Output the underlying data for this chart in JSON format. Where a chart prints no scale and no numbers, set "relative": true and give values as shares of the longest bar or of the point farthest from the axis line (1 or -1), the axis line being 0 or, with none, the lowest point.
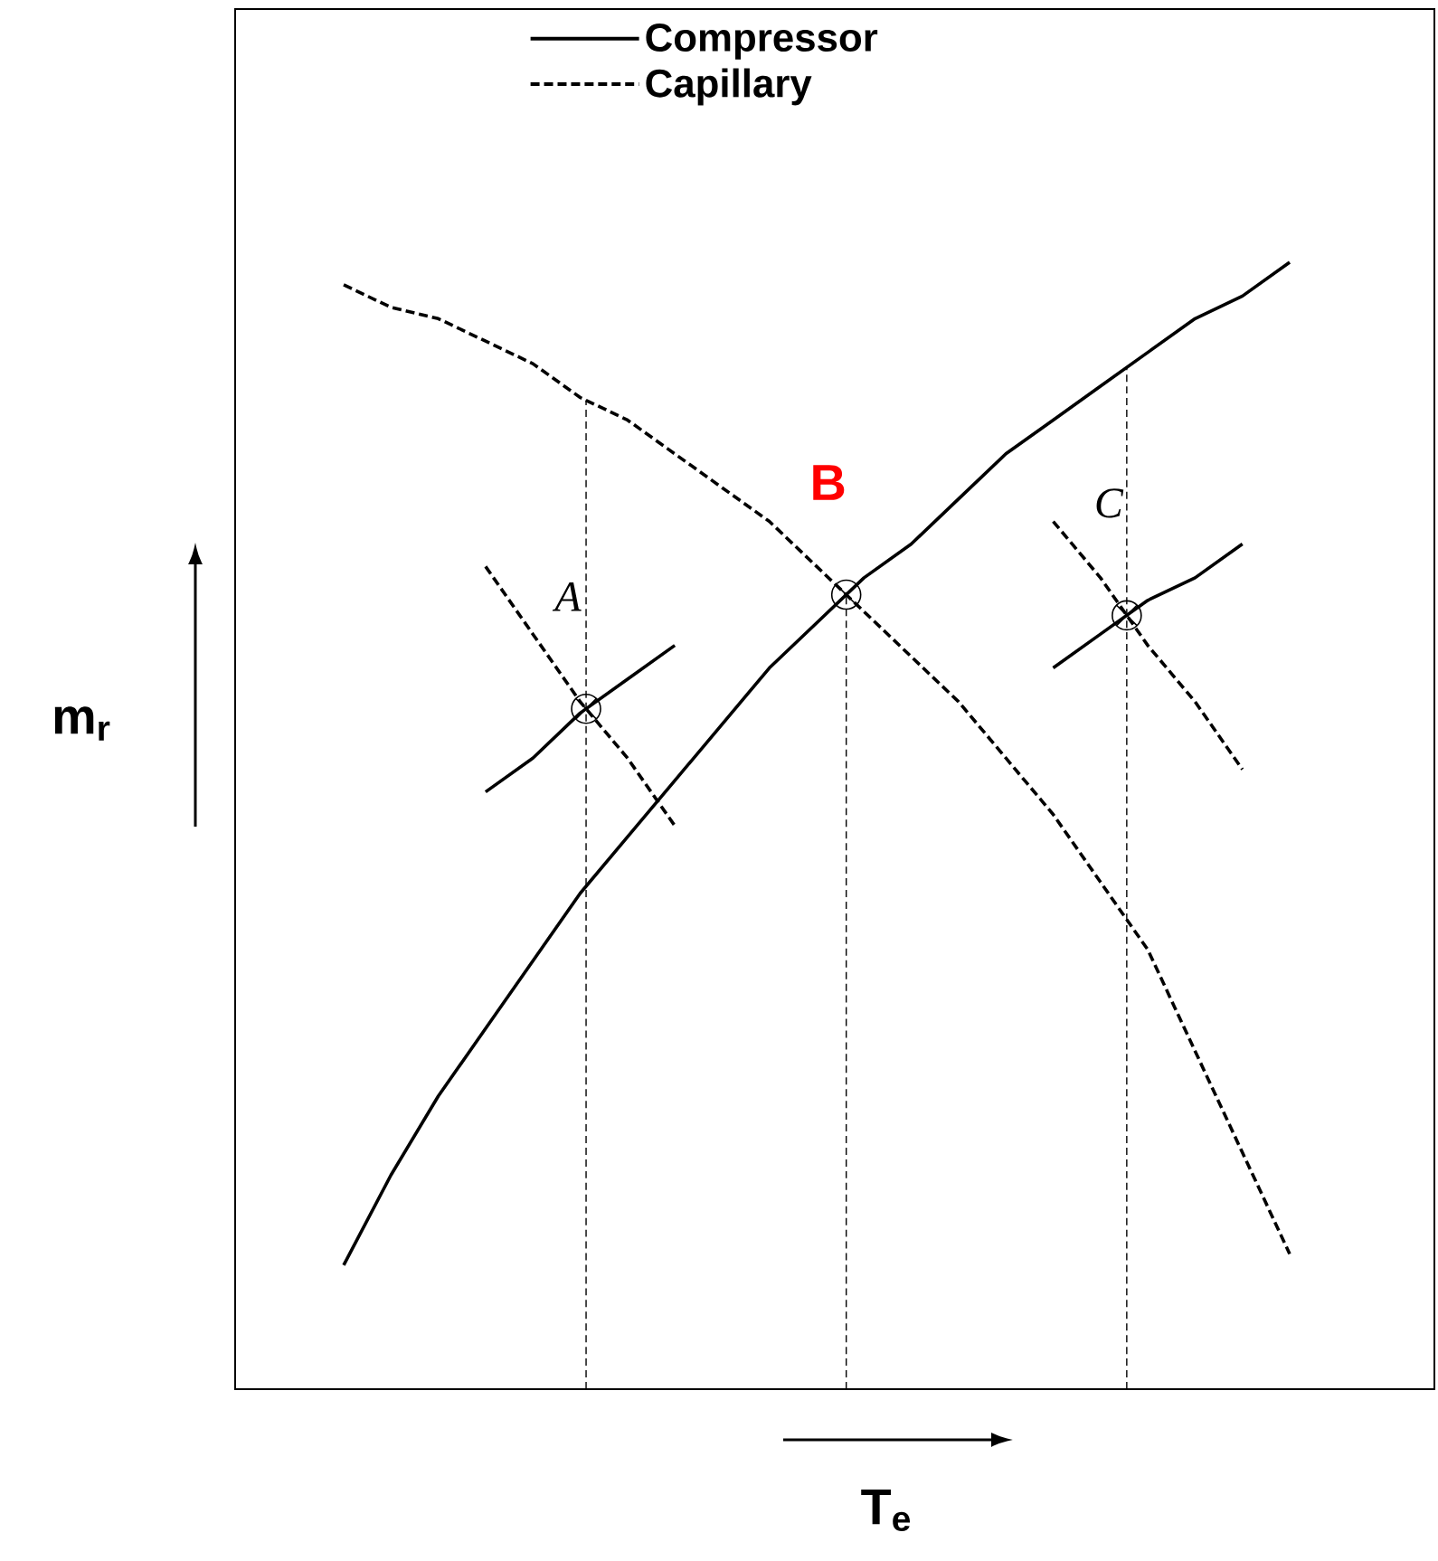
{
  "chart_data": {
    "type": "line",
    "relative": true,
    "xlabel": "T$_{e}$",
    "ylabel": "m$_{r}$",
    "legend": "top left",
    "categories": [
      null,
      null,
      null,
      null,
      null,
      null,
      null,
      null,
      null,
      null,
      null,
      null,
      null,
      null,
      null,
      null,
      null,
      null,
      null,
      null,
      null
    ],
    "series": [
      {
        "name": "Compressor",
        "color": "#000000",
        "line_style": "solid",
        "values": [
          0.11,
          0.19,
          0.26,
          0.32,
          0.38,
          0.44,
          0.49,
          0.54,
          0.59,
          0.64,
          0.68,
          0.72,
          0.75,
          0.79,
          0.83,
          0.86,
          0.89,
          0.92,
          0.95,
          0.97,
          1.0
        ]
      },
      {
        "name": "Capillary",
        "color": "#000000",
        "line_style": "dashed",
        "values": [
          0.98,
          0.96,
          0.95,
          0.93,
          0.91,
          0.88,
          0.86,
          0.83,
          0.8,
          0.77,
          0.73,
          0.69,
          0.65,
          0.61,
          0.56,
          0.51,
          0.45,
          0.39,
          0.3,
          0.21,
          0.12
        ]
      },
      {
        "color": "#000000",
        "line_style": "solid",
        "values": [
          null,
          null,
          null,
          0.53,
          0.56,
          0.6,
          0.63,
          0.66,
          null,
          null,
          null,
          null,
          null,
          null,
          null,
          null,
          null,
          null,
          null,
          null,
          null
        ]
      },
      {
        "color": "#000000",
        "line_style": "dashed",
        "values": [
          null,
          null,
          null,
          0.73,
          0.67,
          0.61,
          0.56,
          0.5,
          null,
          null,
          null,
          null,
          null,
          null,
          null,
          null,
          null,
          null,
          null,
          null,
          null
        ]
      },
      {
        "color": "#000000",
        "line_style": "solid",
        "values": [
          null,
          null,
          null,
          null,
          null,
          null,
          null,
          null,
          null,
          null,
          null,
          null,
          null,
          null,
          null,
          0.64,
          0.67,
          0.7,
          0.72,
          0.75,
          null
        ]
      },
      {
        "color": "#000000",
        "line_style": "dashed",
        "values": [
          null,
          null,
          null,
          null,
          null,
          null,
          null,
          null,
          null,
          null,
          null,
          null,
          null,
          null,
          null,
          0.77,
          0.72,
          0.66,
          0.61,
          0.55,
          null
        ]
      }
    ],
    "annotations": [
      "A",
      "B",
      "C"
    ]
  }
}
